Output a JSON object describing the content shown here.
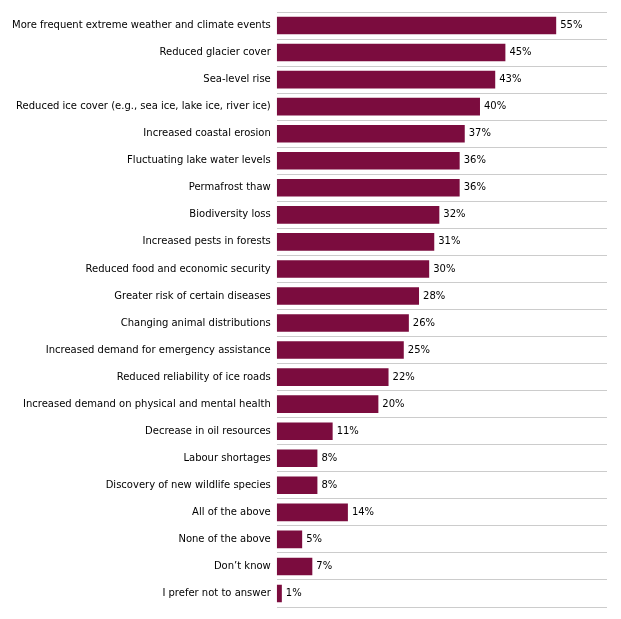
{
  "chart_data": {
    "type": "bar",
    "orientation": "horizontal",
    "categories": [
      "More frequent extreme weather and climate events",
      "Reduced glacier cover",
      "Sea-level rise",
      "Reduced ice cover (e.g., sea ice, lake ice, river ice)",
      "Increased coastal erosion",
      "Fluctuating lake water levels",
      "Permafrost thaw",
      "Biodiversity loss",
      "Increased pests in forests",
      "Reduced food and economic security",
      "Greater risk of certain diseases",
      "Changing animal distributions",
      "Increased demand for emergency assistance",
      "Reduced reliability of ice roads",
      "Increased demand on physical and mental health",
      "Decrease in oil resources",
      "Labour shortages",
      "Discovery of new wildlife species",
      "All of the above",
      "None of the above",
      "Don’t know",
      "I prefer not to answer"
    ],
    "values": [
      55,
      45,
      43,
      40,
      37,
      36,
      36,
      32,
      31,
      30,
      28,
      26,
      25,
      22,
      20,
      11,
      8,
      8,
      14,
      5,
      7,
      1
    ],
    "value_labels": [
      "55%",
      "45%",
      "43%",
      "40%",
      "37%",
      "36%",
      "36%",
      "32%",
      "31%",
      "30%",
      "28%",
      "26%",
      "25%",
      "22%",
      "20%",
      "11%",
      "8%",
      "8%",
      "14%",
      "5%",
      "7%",
      "1%"
    ],
    "data_labels": true,
    "color": "#7B0C3E",
    "xlim": [
      0,
      65
    ],
    "grid": true,
    "tick_labels": "y"
  }
}
